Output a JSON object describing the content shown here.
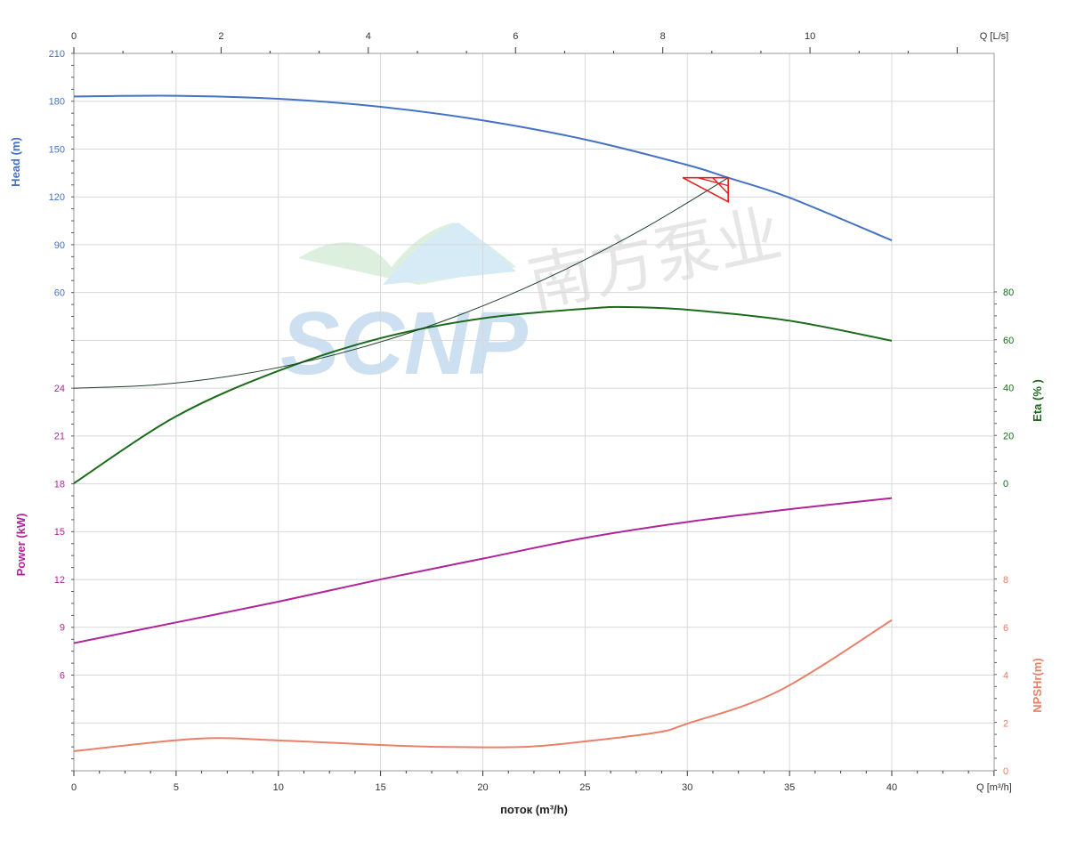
{
  "chart_data": {
    "type": "line",
    "x_axis_bottom": {
      "label": "Q [m³/h]",
      "title": "поток (m³/h)",
      "range": [
        0,
        45
      ],
      "ticks": [
        0,
        5,
        10,
        15,
        20,
        25,
        30,
        35,
        40
      ]
    },
    "x_axis_top": {
      "label": "Q [L/s]",
      "range": [
        0,
        12.5
      ],
      "ticks": [
        0,
        2,
        4,
        6,
        8,
        10
      ]
    },
    "grid": true,
    "axes": {
      "head": {
        "title": "Head (m)",
        "side": "left",
        "range": [
          0,
          210
        ],
        "ticks": [
          60,
          90,
          120,
          150,
          180,
          210
        ],
        "color": "#4472c4"
      },
      "power": {
        "title": "Power (kW)",
        "side": "left",
        "range": [
          0,
          24
        ],
        "ticks": [
          6,
          9,
          12,
          15,
          18,
          21,
          24
        ],
        "color": "#b0249a"
      },
      "eta": {
        "title": "Eta (% )",
        "side": "right",
        "range": [
          0,
          80
        ],
        "ticks": [
          0,
          20,
          40,
          60,
          80
        ],
        "color": "#1a6b1a"
      },
      "npsh": {
        "title": "NPSHr(m)",
        "side": "right",
        "range": [
          0,
          8
        ],
        "ticks": [
          0,
          2,
          4,
          6,
          8
        ],
        "color": "#e8806a"
      }
    },
    "series": [
      {
        "key": "head",
        "axis": "head",
        "color": "#4472c4",
        "x": [
          0,
          5,
          10,
          15,
          20,
          25,
          30,
          32,
          35,
          40
        ],
        "y": [
          183,
          183.4,
          181.5,
          176.5,
          168,
          156,
          140,
          132,
          119.5,
          92.7
        ]
      },
      {
        "key": "eta",
        "axis": "eta",
        "color": "#1a6b1a",
        "x": [
          0,
          5,
          10,
          15,
          20,
          25,
          27,
          30,
          35,
          40
        ],
        "y": [
          0,
          28,
          47,
          60.7,
          69,
          73,
          73.7,
          72.6,
          68,
          59.6
        ]
      },
      {
        "key": "power",
        "axis": "power",
        "color": "#b0249a",
        "x": [
          0,
          5,
          10,
          15,
          20,
          25,
          30,
          35,
          40
        ],
        "y": [
          8.0,
          9.3,
          10.6,
          12.0,
          13.3,
          14.6,
          15.6,
          16.4,
          17.1
        ]
      },
      {
        "key": "npsh",
        "axis": "npsh",
        "color": "#e8806a",
        "x": [
          0,
          6,
          10,
          15,
          18,
          22,
          25,
          28.5,
          30,
          34.5,
          40
        ],
        "y": [
          0.82,
          1.34,
          1.27,
          1.08,
          1.0,
          1.0,
          1.23,
          1.6,
          1.97,
          3.35,
          6.3
        ]
      },
      {
        "key": "system",
        "axis": "head",
        "color": "#1f3f2a",
        "x": [
          0,
          4,
          8,
          12,
          16,
          20,
          24,
          28,
          32
        ],
        "y": [
          0,
          2.1,
          8.3,
          18.6,
          33,
          51.6,
          74.3,
          101.1,
          132
        ]
      }
    ],
    "duty_point": {
      "q": 32,
      "head": 132,
      "color": "#e02020"
    }
  },
  "watermark": {
    "text": "SCNP南方泵业"
  }
}
